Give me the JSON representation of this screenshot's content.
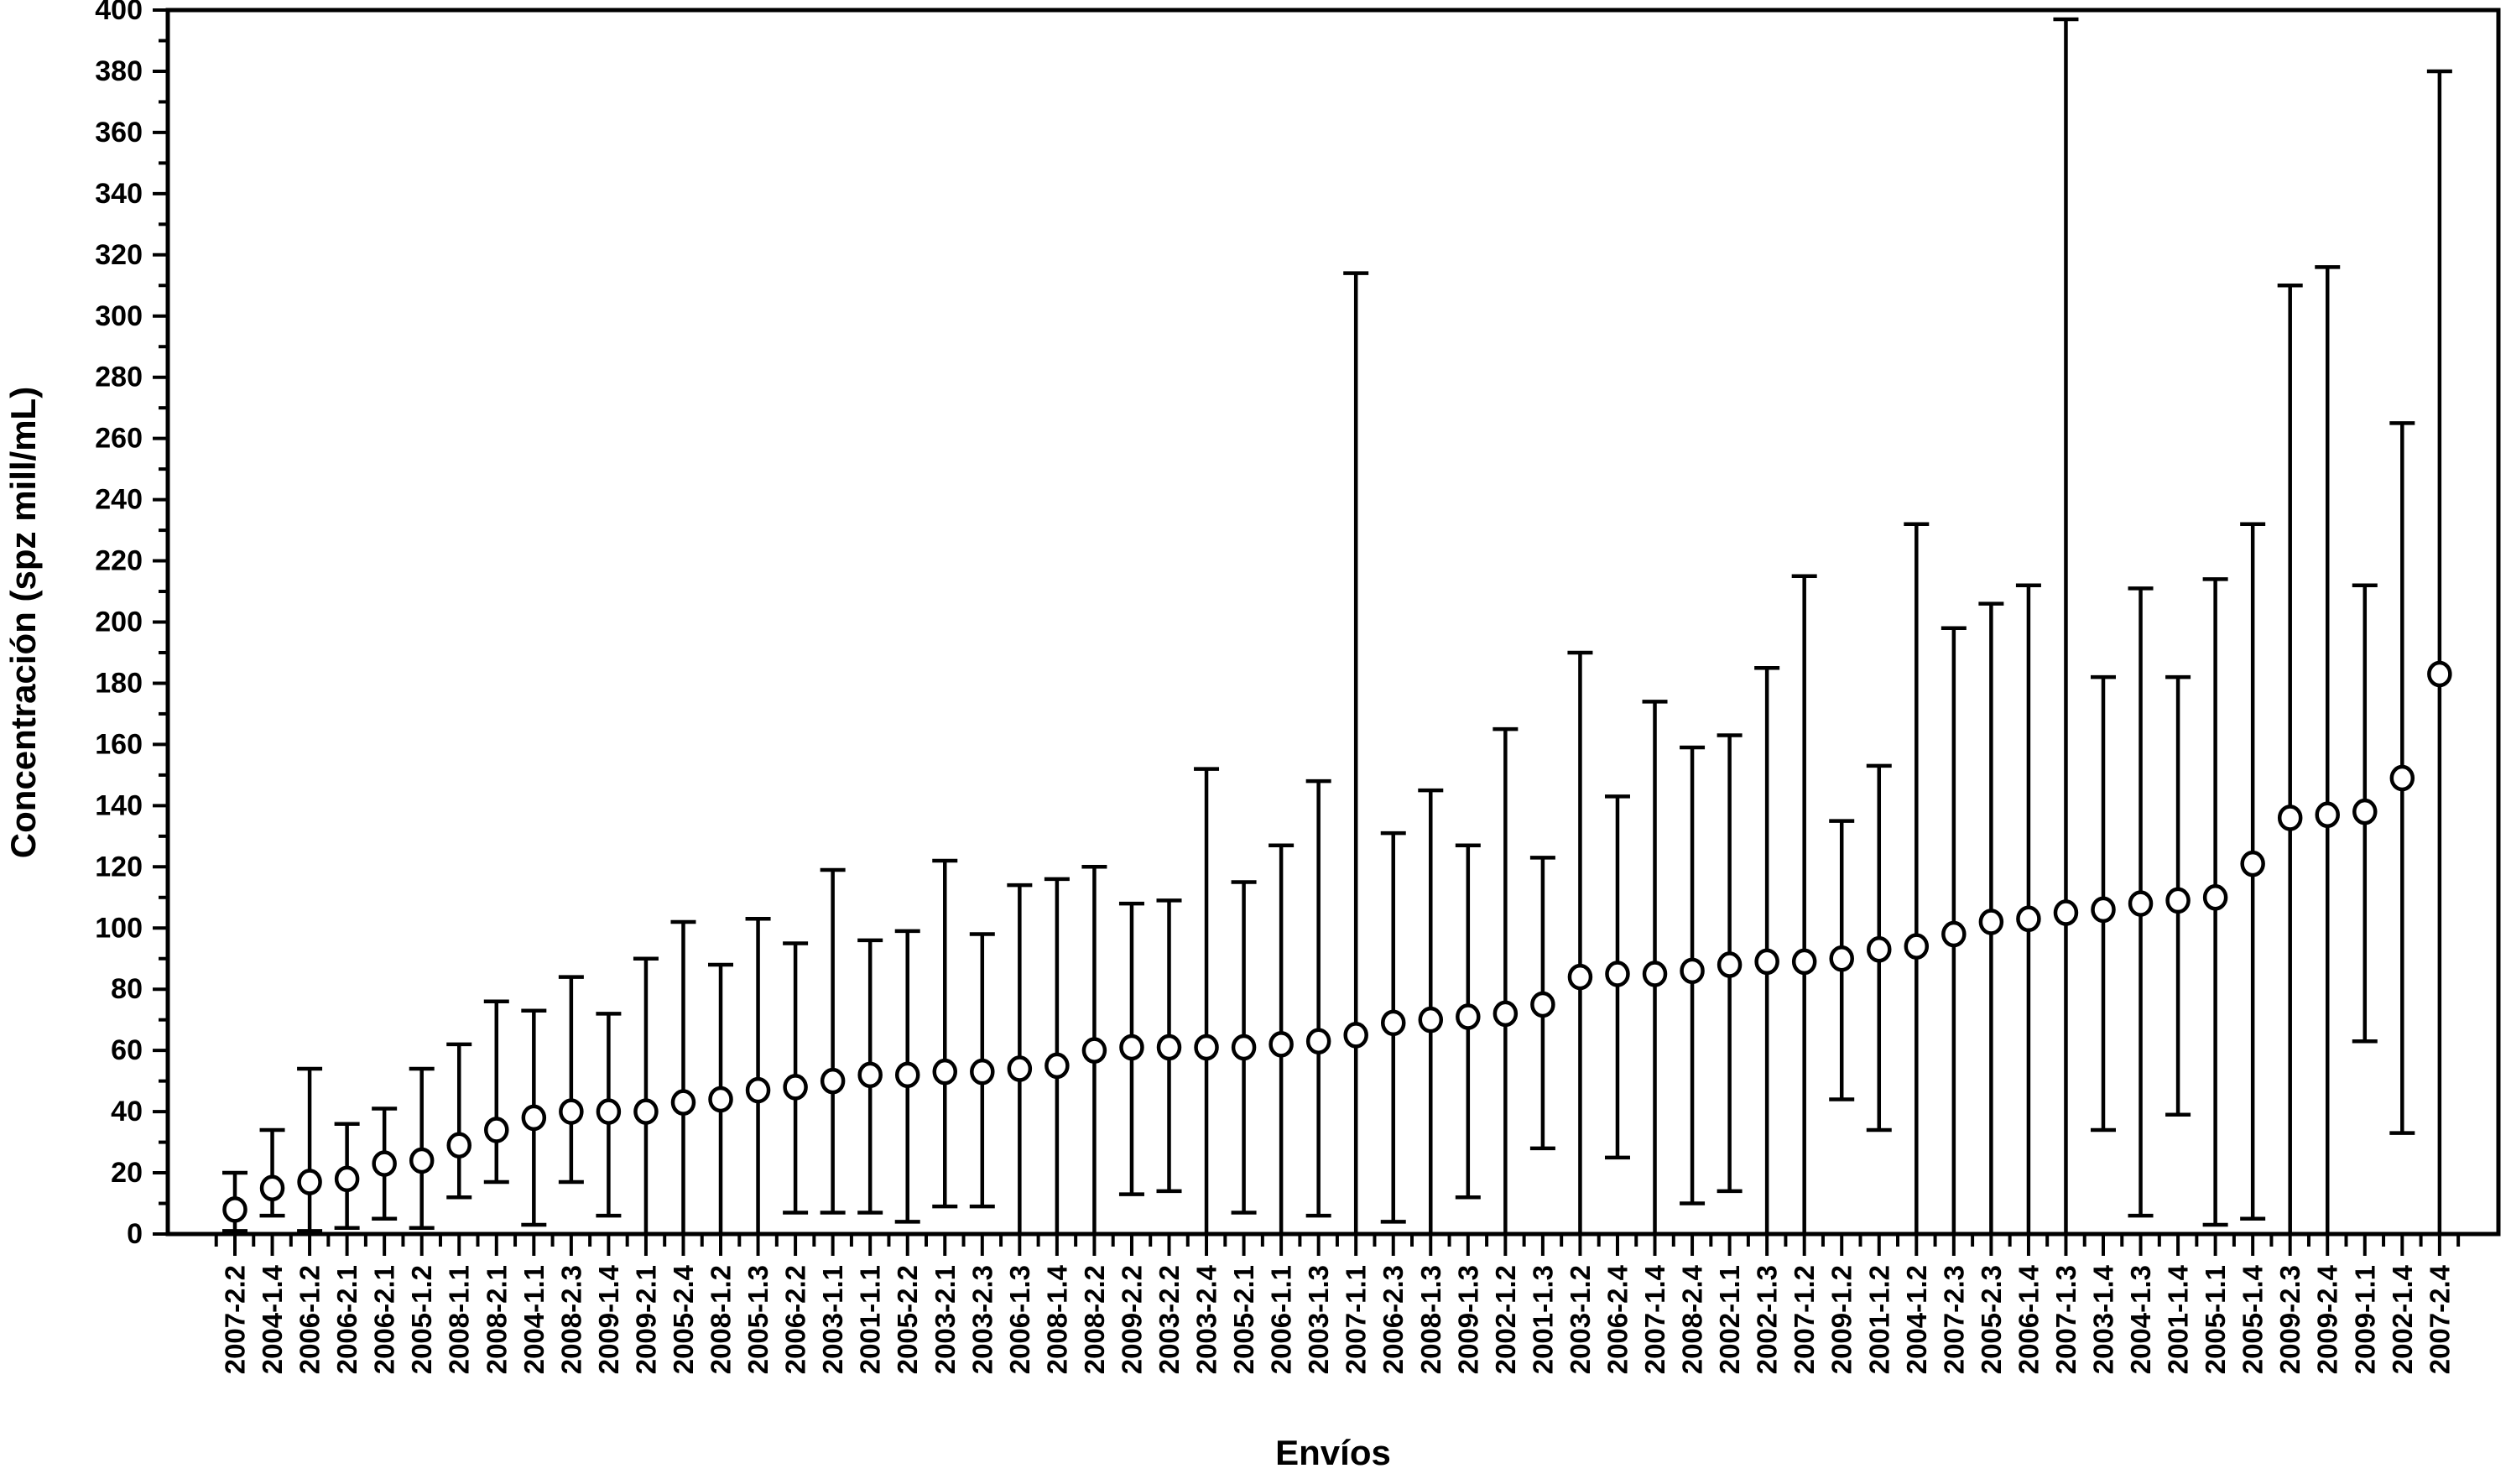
{
  "figure": {
    "background": "#ffffff",
    "ink": "#000000"
  },
  "chart_data": {
    "type": "scatter",
    "title": "",
    "xlabel": "Envíos",
    "ylabel": "Concentración (spz mill/mL)",
    "ylim": [
      0,
      400
    ],
    "ytick_step": 20,
    "ytick_minor_step": 10,
    "grid": false,
    "legend_position": "none",
    "marker": "open-circle",
    "error_bars": true,
    "categories": [
      "2007-2.2",
      "2004-1.4",
      "2006-1.2",
      "2006-2.1",
      "2006-2.1",
      "2005-1.2",
      "2008-1.1",
      "2008-2.1",
      "2004-1.1",
      "2008-2.3",
      "2009-1.4",
      "2009-2.1",
      "2005-2.4",
      "2008-1.2",
      "2005-1.3",
      "2006-2.2",
      "2003-1.1",
      "2001-1.1",
      "2005-2.2",
      "2003-2.1",
      "2003-2.3",
      "2006-1.3",
      "2008-1.4",
      "2008-2.2",
      "2009-2.2",
      "2003-2.2",
      "2003-2.4",
      "2005-2.1",
      "2006-1.1",
      "2003-1.3",
      "2007-1.1",
      "2006-2.3",
      "2008-1.3",
      "2009-1.3",
      "2002-1.2",
      "2001-1.3",
      "2003-1.2",
      "2006-2.4",
      "2007-1.4",
      "2008-2.4",
      "2002-1.1",
      "2002-1.3",
      "2007-1.2",
      "2009-1.2",
      "2001-1.2",
      "2004-1.2",
      "2007-2.3",
      "2005-2.3",
      "2006-1.4",
      "2007-1.3",
      "2003-1.4",
      "2004-1.3",
      "2001-1.4",
      "2005-1.1",
      "2005-1.4",
      "2009-2.3",
      "2009-2.4",
      "2009-1.1",
      "2002-1.4",
      "2007-2.4"
    ],
    "series": [
      {
        "name": "media",
        "role": "mean",
        "values": [
          8,
          15,
          17,
          18,
          23,
          24,
          29,
          34,
          38,
          40,
          40,
          40,
          43,
          44,
          47,
          48,
          50,
          52,
          52,
          53,
          53,
          54,
          55,
          60,
          61,
          61,
          61,
          61,
          62,
          63,
          65,
          69,
          70,
          71,
          72,
          75,
          84,
          85,
          85,
          86,
          88,
          89,
          89,
          90,
          93,
          94,
          98,
          102,
          103,
          105,
          106,
          108,
          109,
          110,
          121,
          136,
          137,
          138,
          149,
          183
        ]
      },
      {
        "name": "límite inferior",
        "role": "error_lower",
        "values": [
          1,
          6,
          1,
          2,
          5,
          2,
          12,
          17,
          3,
          17,
          6,
          0,
          0,
          0,
          0,
          7,
          7,
          7,
          4,
          9,
          9,
          0,
          0,
          0,
          13,
          14,
          0,
          7,
          0,
          6,
          0,
          4,
          0,
          12,
          0,
          28,
          0,
          25,
          0,
          10,
          14,
          0,
          0,
          44,
          34,
          0,
          0,
          0,
          0,
          0,
          34,
          6,
          39,
          3,
          5,
          0,
          0,
          63,
          33,
          0
        ]
      },
      {
        "name": "límite superior",
        "role": "error_upper",
        "values": [
          20,
          34,
          54,
          36,
          41,
          54,
          62,
          76,
          73,
          84,
          72,
          90,
          102,
          88,
          103,
          95,
          119,
          96,
          99,
          122,
          98,
          114,
          116,
          120,
          108,
          109,
          152,
          115,
          127,
          148,
          314,
          131,
          145,
          127,
          165,
          123,
          190,
          143,
          174,
          159,
          163,
          185,
          215,
          135,
          153,
          232,
          198,
          206,
          212,
          397,
          182,
          211,
          182,
          214,
          232,
          310,
          316,
          212,
          265,
          380
        ]
      }
    ]
  }
}
